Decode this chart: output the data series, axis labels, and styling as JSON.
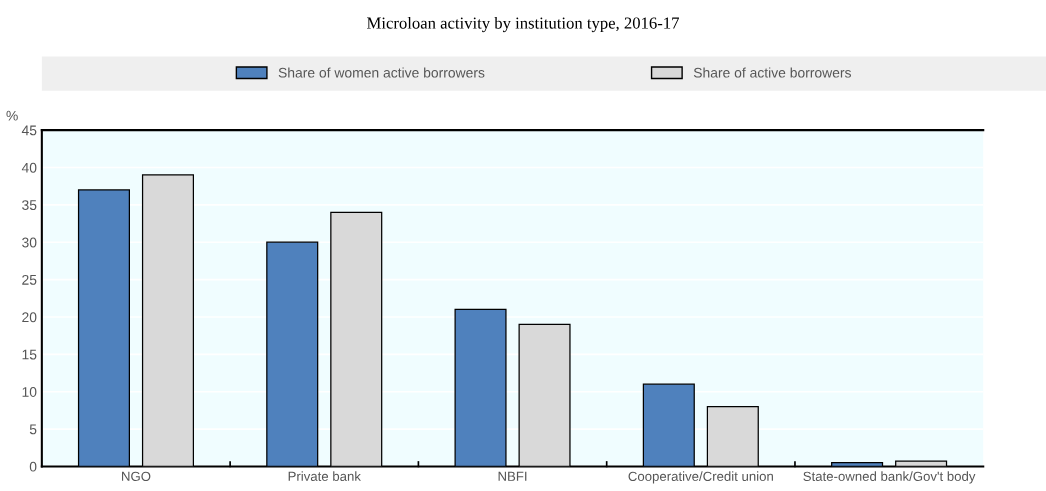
{
  "chart_data": {
    "type": "bar",
    "title": "Microloan activity by institution type, 2016-17",
    "ylabel": "%",
    "categories": [
      "NGO",
      "Private bank",
      "NBFI",
      "Cooperative/Credit union",
      "State-owned bank/Gov't body"
    ],
    "series": [
      {
        "name": "Share of women active borrowers",
        "color": "#4f81bd",
        "values": [
          37,
          30,
          21,
          11,
          0.5
        ]
      },
      {
        "name": "Share of active borrowers",
        "color": "#d9d9d9",
        "values": [
          39,
          34,
          19,
          8,
          0.7
        ]
      }
    ],
    "ylim": [
      0,
      45
    ],
    "yticks": [
      0,
      5,
      10,
      15,
      20,
      25,
      30,
      35,
      40,
      45
    ],
    "grid": "y",
    "legend": "top"
  }
}
